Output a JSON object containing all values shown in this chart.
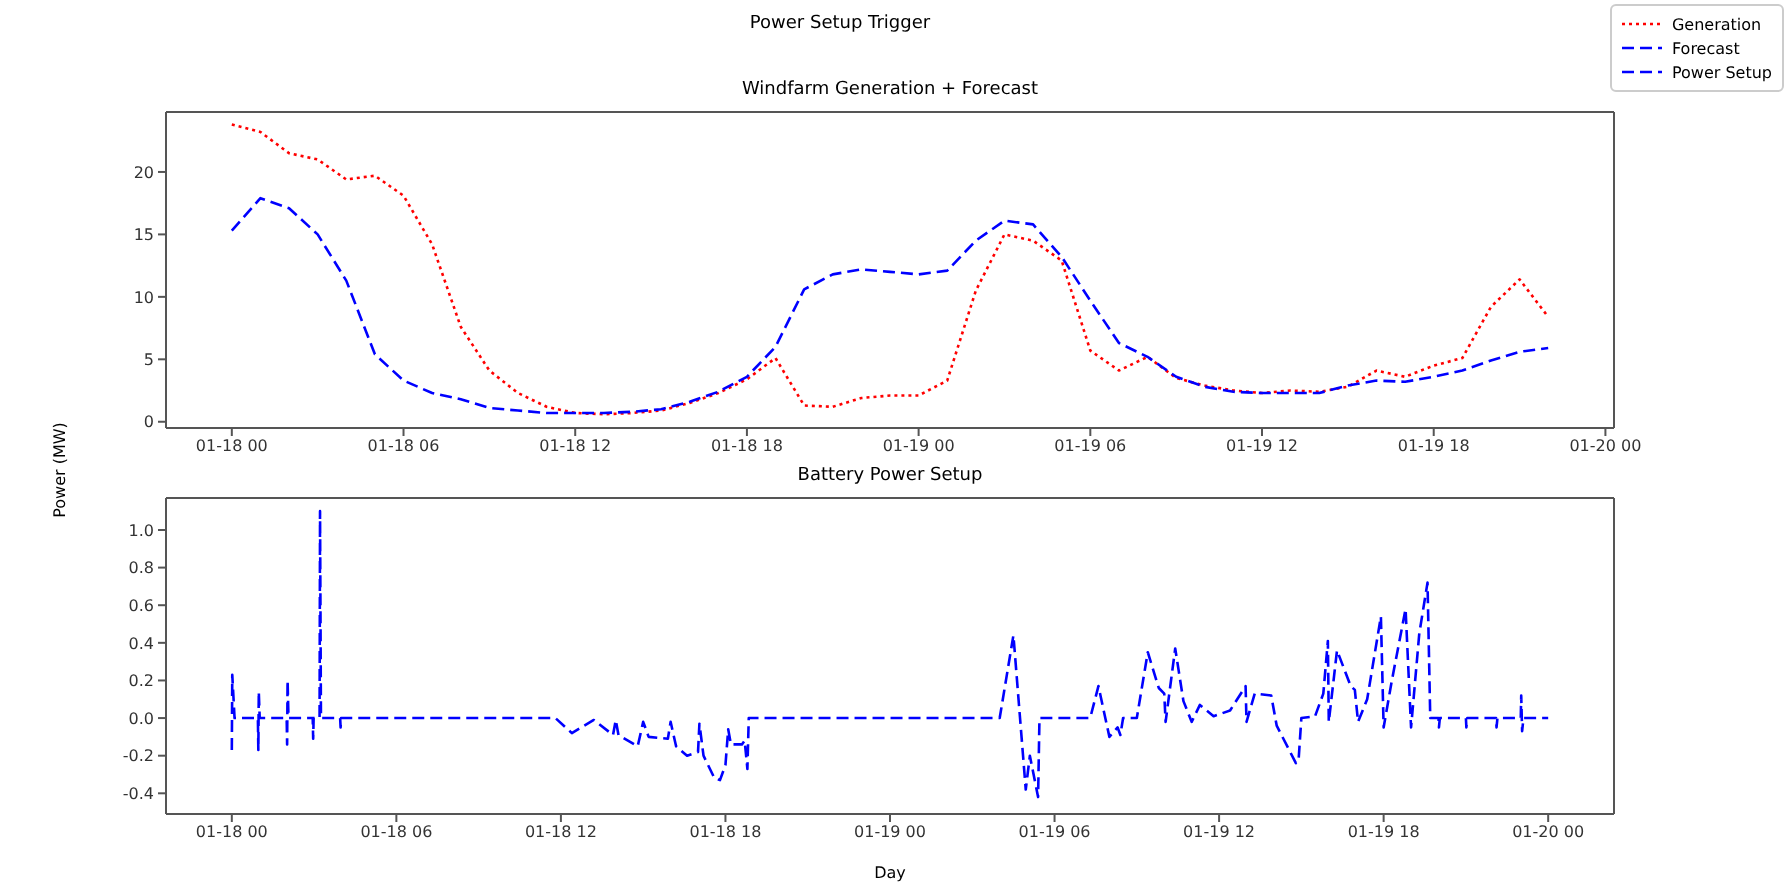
{
  "chart_data": [
    {
      "type": "line",
      "title": "Windfarm Generation + Forecast",
      "ylabel": "Power (MW)",
      "annotations": [
        "Power Setup Trigger"
      ],
      "legend": "top right",
      "x": [
        "--01-18T00:00",
        "--01-18T01:00",
        "--01-18T02:00",
        "--01-18T03:00",
        "--01-18T04:00",
        "--01-18T05:00",
        "--01-18T06:00",
        "--01-18T07:00",
        "--01-18T08:00",
        "--01-18T09:00",
        "--01-18T10:00",
        "--01-18T11:00",
        "--01-18T12:00",
        "--01-18T13:00",
        "--01-18T14:00",
        "--01-18T15:00",
        "--01-18T16:00",
        "--01-18T17:00",
        "--01-18T18:00",
        "--01-18T19:00",
        "--01-18T20:00",
        "--01-18T21:00",
        "--01-18T22:00",
        "--01-18T23:00",
        "--01-19T00:00",
        "--01-19T01:00",
        "--01-19T02:00",
        "--01-19T03:00",
        "--01-19T04:00",
        "--01-19T05:00",
        "--01-19T06:00",
        "--01-19T07:00",
        "--01-19T08:00",
        "--01-19T09:00",
        "--01-19T10:00",
        "--01-19T11:00",
        "--01-19T12:00",
        "--01-19T13:00",
        "--01-19T14:00",
        "--01-19T15:00",
        "--01-19T16:00",
        "--01-19T17:00",
        "--01-19T18:00",
        "--01-19T19:00",
        "--01-19T20:00",
        "--01-19T21:00",
        "--01-19T22:00"
      ],
      "series": [
        {
          "name": "Generation",
          "color": "#ff0000",
          "line_style": "dotted",
          "values": [
            23.8,
            23.2,
            21.5,
            21.0,
            19.4,
            19.7,
            18.1,
            14.2,
            7.6,
            4.1,
            2.3,
            1.2,
            0.7,
            0.6,
            0.7,
            0.9,
            1.5,
            2.3,
            3.4,
            5.1,
            1.3,
            1.2,
            1.9,
            2.1,
            2.1,
            3.3,
            10.5,
            15.0,
            14.5,
            12.9,
            5.7,
            4.1,
            5.2,
            3.5,
            2.9,
            2.5,
            2.3,
            2.5,
            2.4,
            2.8,
            4.1,
            3.6,
            4.5,
            5.1,
            9.2,
            11.4,
            8.4
          ]
        },
        {
          "name": "Forecast",
          "color": "#0000ff",
          "line_style": "dashed",
          "values": [
            15.3,
            17.9,
            17.1,
            15.0,
            11.3,
            5.4,
            3.3,
            2.3,
            1.8,
            1.1,
            0.9,
            0.7,
            0.7,
            0.7,
            0.8,
            1.0,
            1.6,
            2.4,
            3.6,
            6.0,
            10.6,
            11.8,
            12.2,
            12.0,
            11.8,
            12.1,
            14.5,
            16.1,
            15.8,
            13.2,
            9.7,
            6.3,
            5.2,
            3.6,
            2.8,
            2.4,
            2.3,
            2.3,
            2.3,
            2.9,
            3.3,
            3.2,
            3.6,
            4.1,
            4.9,
            5.6,
            5.9
          ]
        }
      ],
      "xlim": [
        "--01-17T21:42",
        "--01-20T00:18"
      ],
      "xticks": [
        {
          "value": "--01-18T00:00",
          "label": "01-18 00"
        },
        {
          "value": "--01-18T06:00",
          "label": "01-18 06"
        },
        {
          "value": "--01-18T12:00",
          "label": "01-18 12"
        },
        {
          "value": "--01-18T18:00",
          "label": "01-18 18"
        },
        {
          "value": "--01-19T00:00",
          "label": "01-19 00"
        },
        {
          "value": "--01-19T06:00",
          "label": "01-19 06"
        },
        {
          "value": "--01-19T12:00",
          "label": "01-19 12"
        },
        {
          "value": "--01-19T18:00",
          "label": "01-19 18"
        },
        {
          "value": "--01-20T00:00",
          "label": "01-20 00"
        }
      ],
      "ylim": [
        -0.5,
        24.8
      ],
      "yticks": [
        0,
        5,
        10,
        15,
        20
      ],
      "grid": false
    },
    {
      "type": "line",
      "title": "Battery Power Setup",
      "xlabel": "Day",
      "legend": "top right",
      "series": [
        {
          "name": "Power Setup",
          "color": "#0000ff",
          "line_style": "dashed",
          "x": [
            "--01-18T00:00",
            "--01-18T00:01",
            "--01-18T00:06",
            "--01-18T00:57",
            "--01-18T00:58",
            "--01-18T00:59",
            "--01-18T01:01",
            "--01-18T02:00",
            "--01-18T02:01",
            "--01-18T02:02",
            "--01-18T02:04",
            "--01-18T02:57",
            "--01-18T02:58",
            "--01-18T02:59",
            "--01-18T03:12",
            "--01-18T03:13",
            "--01-18T03:15",
            "--01-18T03:57",
            "--01-18T03:58",
            "--01-18T03:59",
            "--01-18T11:48",
            "--01-18T12:24",
            "--01-18T13:12",
            "--01-18T13:54",
            "--01-18T14:00",
            "--01-18T14:06",
            "--01-18T14:48",
            "--01-18T15:00",
            "--01-18T15:12",
            "--01-18T15:54",
            "--01-18T16:00",
            "--01-18T16:12",
            "--01-18T16:36",
            "--01-18T17:00",
            "--01-18T17:03",
            "--01-18T17:12",
            "--01-18T17:36",
            "--01-18T17:48",
            "--01-18T18:00",
            "--01-18T18:06",
            "--01-18T18:12",
            "--01-18T18:36",
            "--01-18T18:42",
            "--01-18T18:48",
            "--01-18T18:51",
            "--01-19T04:00",
            "--01-19T04:30",
            "--01-19T04:57",
            "--01-19T05:06",
            "--01-19T05:24",
            "--01-19T05:27",
            "--01-19T07:18",
            "--01-19T07:36",
            "--01-19T08:00",
            "--01-19T08:18",
            "--01-19T08:24",
            "--01-19T08:30",
            "--01-19T09:00",
            "--01-19T09:24",
            "--01-19T09:48",
            "--01-19T10:00",
            "--01-19T10:03",
            "--01-19T10:24",
            "--01-19T10:42",
            "--01-19T11:00",
            "--01-19T11:18",
            "--01-19T11:48",
            "--01-19T12:24",
            "--01-19T12:58",
            "--01-19T13:00",
            "--01-19T13:18",
            "--01-19T13:54",
            "--01-19T14:06",
            "--01-19T14:48",
            "--01-19T14:54",
            "--01-19T15:00",
            "--01-19T15:30",
            "--01-19T15:48",
            "--01-19T15:58",
            "--01-19T16:00",
            "--01-19T16:18",
            "--01-19T16:48",
            "--01-19T16:57",
            "--01-19T17:04",
            "--01-19T17:24",
            "--01-19T17:54",
            "--01-19T18:00",
            "--01-19T18:18",
            "--01-19T18:48",
            "--01-19T19:00",
            "--01-19T19:18",
            "--01-19T19:36",
            "--01-19T19:42",
            "--01-19T20:00",
            "--01-19T20:01",
            "--01-19T20:03",
            "--01-19T21:00",
            "--01-19T21:01",
            "--01-19T21:03",
            "--01-19T22:06",
            "--01-19T22:07",
            "--01-19T22:09",
            "--01-19T23:00",
            "--01-19T23:01",
            "--01-19T23:03",
            "--01-19T23:06",
            "--01-20T00:00"
          ],
          "values": [
            -0.17,
            0.23,
            0,
            0,
            -0.17,
            0.14,
            0,
            0,
            -0.14,
            0.2,
            0,
            0,
            -0.11,
            0,
            0,
            1.1,
            0,
            0,
            -0.05,
            0,
            0,
            -0.08,
            -0.01,
            -0.09,
            -0.01,
            -0.09,
            -0.15,
            -0.02,
            -0.1,
            -0.11,
            -0.02,
            -0.15,
            -0.2,
            -0.18,
            -0.03,
            -0.2,
            -0.32,
            -0.33,
            -0.25,
            -0.06,
            -0.14,
            -0.14,
            -0.12,
            -0.27,
            0,
            0,
            0.44,
            -0.38,
            -0.2,
            -0.42,
            0,
            0,
            0.17,
            -0.1,
            -0.05,
            -0.09,
            0,
            0,
            0.35,
            0.16,
            0.13,
            -0.02,
            0.37,
            0.09,
            -0.02,
            0.07,
            0.01,
            0.04,
            0.17,
            -0.02,
            0.13,
            0.12,
            -0.04,
            -0.24,
            -0.22,
            0,
            0.01,
            0.13,
            0.41,
            -0.02,
            0.36,
            0.17,
            0.15,
            -0.02,
            0.1,
            0.54,
            -0.05,
            0.2,
            0.58,
            -0.05,
            0.45,
            0.72,
            0,
            0,
            -0.05,
            0,
            0,
            -0.05,
            0,
            0,
            -0.05,
            0,
            0,
            0.12,
            -0.07,
            0,
            0
          ]
        }
      ],
      "xlim": [
        "--01-17T21:36",
        "--01-20T02:24"
      ],
      "xticks": [
        {
          "value": "--01-18T00:00",
          "label": "01-18 00"
        },
        {
          "value": "--01-18T06:00",
          "label": "01-18 06"
        },
        {
          "value": "--01-18T12:00",
          "label": "01-18 12"
        },
        {
          "value": "--01-18T18:00",
          "label": "01-18 18"
        },
        {
          "value": "--01-19T00:00",
          "label": "01-19 00"
        },
        {
          "value": "--01-19T06:00",
          "label": "01-19 06"
        },
        {
          "value": "--01-19T12:00",
          "label": "01-19 12"
        },
        {
          "value": "--01-19T18:00",
          "label": "01-19 18"
        },
        {
          "value": "--01-20T00:00",
          "label": "01-20 00"
        }
      ],
      "ylim": [
        -0.51,
        1.17
      ],
      "yticks": [
        -0.4,
        -0.2,
        {
          "value": 0,
          "label": "0.0"
        },
        0.2,
        0.4,
        0.6,
        0.8,
        {
          "value": 1,
          "label": "1.0"
        }
      ],
      "grid": false
    }
  ]
}
